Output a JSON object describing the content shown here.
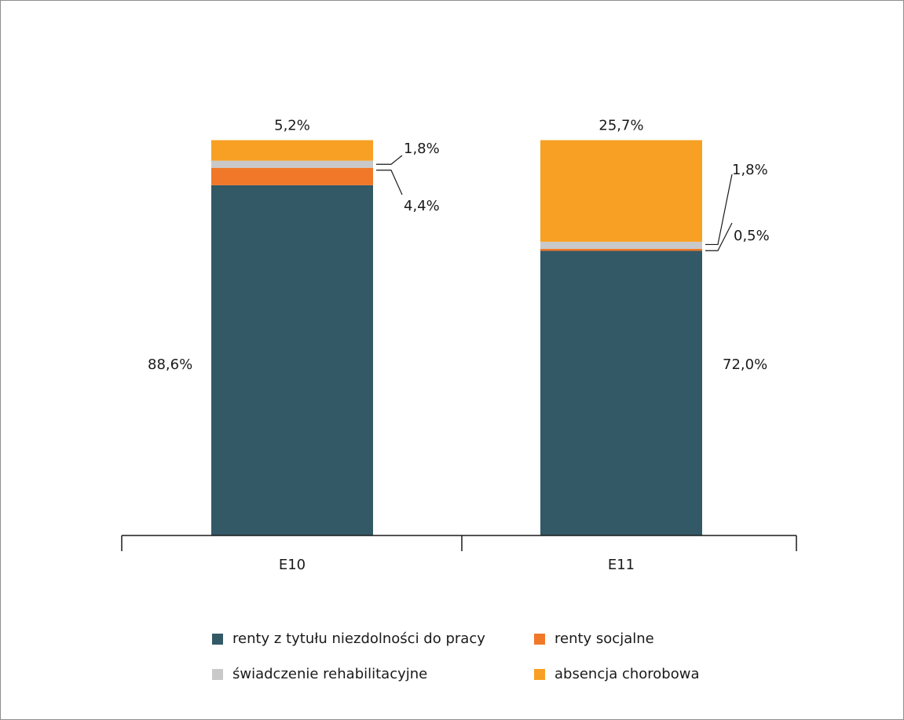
{
  "chart_data": {
    "type": "bar",
    "stacked": true,
    "normalized": true,
    "title": "",
    "xlabel": "",
    "ylabel": "",
    "categories": [
      "E10",
      "E11"
    ],
    "series": [
      {
        "name": "renty z tytułu niezdolności do pracy",
        "color": "#335966",
        "values": [
          88.6,
          72.0
        ],
        "labels": [
          "88,6%",
          "72,0%"
        ]
      },
      {
        "name": "renty socjalne",
        "color": "#f07828",
        "values": [
          4.4,
          0.5
        ],
        "labels": [
          "4,4%",
          "0,5%"
        ]
      },
      {
        "name": "świadczenie rehabilitacyjne",
        "color": "#c9c9c9",
        "values": [
          1.8,
          1.8
        ],
        "labels": [
          "1,8%",
          "1,8%"
        ]
      },
      {
        "name": "absencja chorobowa",
        "color": "#f7a023",
        "values": [
          5.2,
          25.7
        ],
        "labels": [
          "5,2%",
          "25,7%"
        ]
      }
    ],
    "ylim": [
      0,
      100
    ],
    "grid": false,
    "legend_position": "bottom"
  }
}
